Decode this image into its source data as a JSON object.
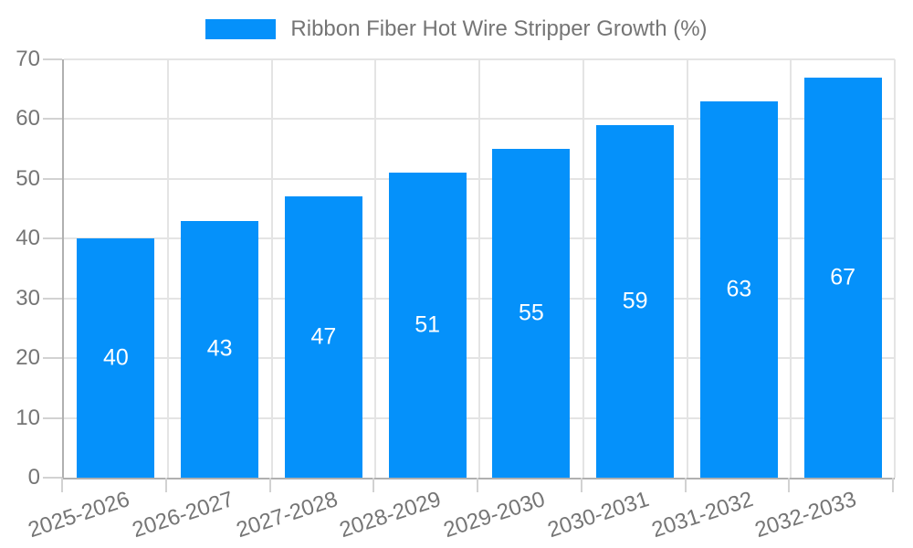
{
  "legend": {
    "label": "Ribbon Fiber Hot Wire Stripper Growth (%)"
  },
  "chart_data": {
    "type": "bar",
    "title": "Ribbon Fiber Hot Wire Stripper Growth (%)",
    "categories": [
      "2025-2026",
      "2026-2027",
      "2027-2028",
      "2028-2029",
      "2029-2030",
      "2030-2031",
      "2031-2032",
      "2032-2033"
    ],
    "values": [
      40,
      43,
      47,
      51,
      55,
      59,
      63,
      67
    ],
    "xlabel": "",
    "ylabel": "",
    "ylim": [
      0,
      70
    ],
    "yticks": [
      0,
      10,
      20,
      30,
      40,
      50,
      60,
      70
    ],
    "grid": true,
    "bar_value_labels_shown": true,
    "legend_position": "top-center",
    "colors": {
      "bar": "#0591fa",
      "bar_label": "#ffffff",
      "axis_text": "#757575",
      "axis_line": "#b0b0b0",
      "gridline": "#e4e4e4",
      "tick": "#d2d2d2",
      "background": "#ffffff"
    }
  }
}
